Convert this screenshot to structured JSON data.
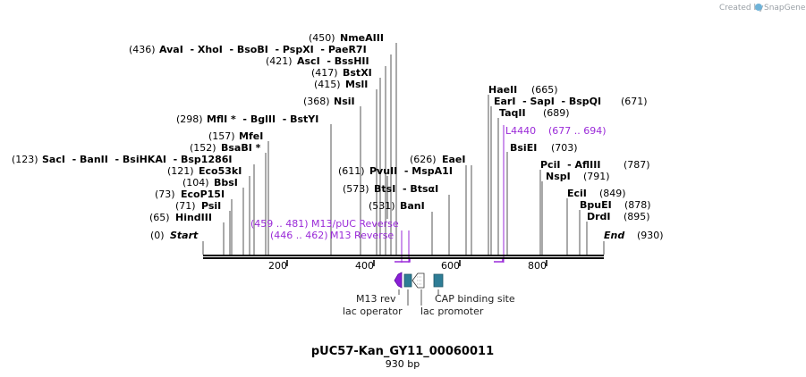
{
  "credit": {
    "prefix": "Created by",
    "brand": "SnapGene"
  },
  "title": "pUC57-Kan_GY11_00060011",
  "length_label": "930 bp",
  "length": 930,
  "ends": {
    "start_pos": "(0)",
    "start_label": "Start",
    "end_label": "End",
    "end_pos": "(930)"
  },
  "axis_ticks": [
    "200",
    "400",
    "600",
    "800"
  ],
  "enzymes_left": [
    {
      "pos": "(450)",
      "name": "NmeAIII"
    },
    {
      "pos": "(436)",
      "name": "AvaI  - XhoI  - BsoBI  - PspXI  - PaeR7I"
    },
    {
      "pos": "(421)",
      "name": "AscI  - BssHII"
    },
    {
      "pos": "(417)",
      "name": "BstXI"
    },
    {
      "pos": "(415)",
      "name": "MslI"
    },
    {
      "pos": "(368)",
      "name": "NsiI"
    },
    {
      "pos": "(298)",
      "name": "MflI *  - BglII  - BstYI"
    },
    {
      "pos": "(157)",
      "name": "MfeI"
    },
    {
      "pos": "(152)",
      "name": "BsaBI *"
    },
    {
      "pos": "(123)",
      "name": "SacI  - BanII  - BsiHKAI  - Bsp1286I"
    },
    {
      "pos": "(121)",
      "name": "Eco53kI"
    },
    {
      "pos": "(104)",
      "name": "BbsI"
    },
    {
      "pos": "(73)",
      "name": "EcoP15I"
    },
    {
      "pos": "(71)",
      "name": "PsiI"
    },
    {
      "pos": "(65)",
      "name": "HindIII"
    }
  ],
  "enzymes_right": [
    {
      "name": "HaeII",
      "pos": "(665)"
    },
    {
      "name": "EarI  - SapI  - BspQI",
      "pos": "(671)"
    },
    {
      "name": "TaqII",
      "pos": "(689)"
    },
    {
      "name": "BsiEI",
      "pos": "(703)"
    },
    {
      "name": "PciI  - AflIII",
      "pos": "(787)"
    },
    {
      "name": "NspI",
      "pos": "(791)"
    },
    {
      "name": "EciI",
      "pos": "(849)"
    },
    {
      "name": "BpuEI",
      "pos": "(878)"
    },
    {
      "name": "DrdI",
      "pos": "(895)"
    }
  ],
  "enzymes_mid": [
    {
      "pos": "(626)",
      "name": "EaeI"
    },
    {
      "pos": "(611)",
      "name": "PvuII  - MspA1I"
    },
    {
      "pos": "(573)",
      "name": "BtsI  - BtsαI"
    },
    {
      "pos": "(531)",
      "name": "BanI"
    }
  ],
  "primers": [
    {
      "range": "(677 .. 694)",
      "name": "L4440",
      "color": "#9a2ad8"
    },
    {
      "range": "(459 .. 481)",
      "name": "M13/pUC Reverse",
      "color": "#9a2ad8"
    },
    {
      "range": "(446 .. 462)",
      "name": "M13 Reverse",
      "color": "#9a2ad8"
    }
  ],
  "features": [
    {
      "name": "M13 rev",
      "color": "#8a1fd6"
    },
    {
      "name": "lac operator",
      "color": "#2e7d96"
    },
    {
      "name": "lac promoter",
      "color": "#ffffff"
    },
    {
      "name": "CAP binding site",
      "color": "#2e7d96"
    }
  ]
}
